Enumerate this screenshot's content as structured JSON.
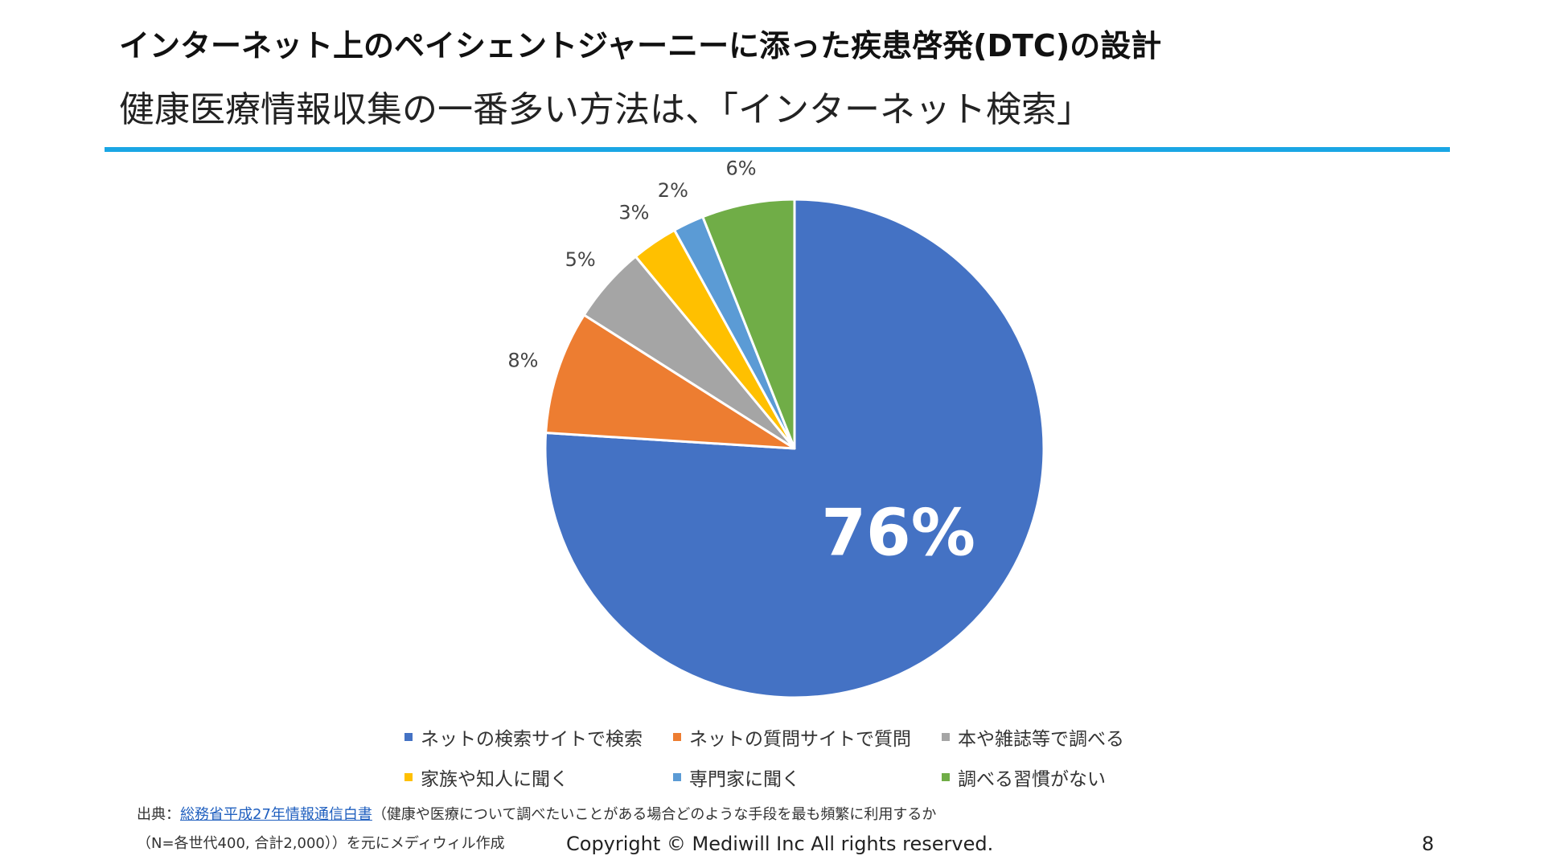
{
  "header": {
    "title": "インターネット上のペイシェントジャーニーに添った疾患啓発(DTC)の設計",
    "subtitle": "健康医療情報収集の一番多い方法は、「インターネット検索」"
  },
  "chart_data": {
    "type": "pie",
    "categories": [
      "ネットの検索サイトで検索",
      "ネットの質問サイトで質問",
      "本や雑誌等で調べる",
      "家族や知人に聞く",
      "専門家に聞く",
      "調べる習慣がない"
    ],
    "values": [
      76,
      8,
      5,
      3,
      2,
      6
    ],
    "labels": [
      "76%",
      "8%",
      "5%",
      "3%",
      "2%",
      "6%"
    ],
    "colors": [
      "#4472c4",
      "#ed7d31",
      "#a5a5a5",
      "#ffc000",
      "#5b9bd5",
      "#70ad47"
    ],
    "start": "12 o'clock",
    "direction": "clockwise",
    "legend": "bottom"
  },
  "footer": {
    "source_prefix": "出典：",
    "source_link": "総務省平成27年情報通信白書",
    "source_note": "（健康や医療について調べたいことがある場合どのような手段を最も頻繁に利用するか",
    "source_line2": "（N=各世代400, 合計2,000））を元にメディウィル作成",
    "copyright": "Copyright © Mediwill Inc All rights reserved.",
    "page_number": "8"
  }
}
